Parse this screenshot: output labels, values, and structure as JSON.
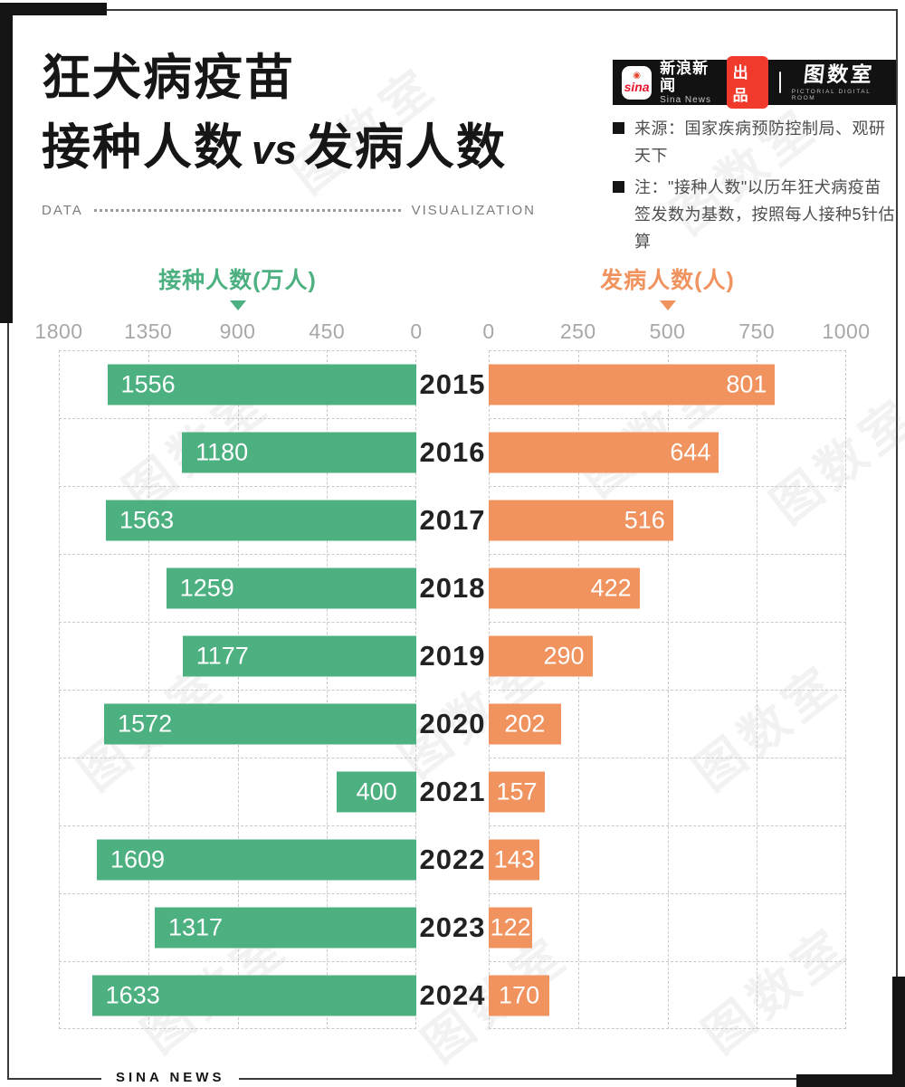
{
  "header": {
    "title_line1": "狂犬病疫苗",
    "title_line2_left": "接种人数",
    "title_vs": "vs",
    "title_line2_right": "发病人数",
    "divider_left": "DATA",
    "divider_right": "VISUALIZATION"
  },
  "brand_bar": {
    "bar_bg": "#121212",
    "sina_icon_text": "sina",
    "sina_name": "新浪新闻",
    "sina_name_en": "Sina News",
    "badge_label": "出品",
    "badge_color": "#f03a2c",
    "studio_name": "图数室",
    "studio_caption": "PICTORIAL DIGITAL ROOM"
  },
  "notes": {
    "source": "来源：国家疾病预防控制局、观研天下",
    "note": "注：\"接种人数\"以历年狂犬病疫苗签发数为基数，按照每人接种5针估算"
  },
  "watermark": {
    "text": "图数室"
  },
  "footer": {
    "label": "SINA NEWS"
  },
  "chart_data": {
    "type": "bar",
    "orientation": "horizontal-diverging",
    "title": "狂犬病疫苗 接种人数 vs 发病人数",
    "categories": [
      "2015",
      "2016",
      "2017",
      "2018",
      "2019",
      "2020",
      "2021",
      "2022",
      "2023",
      "2024"
    ],
    "series": [
      {
        "name": "接种人数(万人)",
        "side": "left",
        "color": "#4db080",
        "axis_max": 1800,
        "ticks": [
          "1800",
          "1350",
          "900",
          "450",
          "0"
        ],
        "values": [
          1556,
          1180,
          1563,
          1259,
          1177,
          1572,
          400,
          1609,
          1317,
          1633
        ]
      },
      {
        "name": "发病人数(人)",
        "side": "right",
        "color": "#f0935f",
        "axis_max": 1000,
        "ticks": [
          "0",
          "250",
          "500",
          "750",
          "1000"
        ],
        "values": [
          801,
          644,
          516,
          422,
          290,
          202,
          157,
          143,
          122,
          170
        ]
      }
    ],
    "grid": "dashed",
    "value_labels": "inside-bars",
    "legend_position": "top"
  }
}
